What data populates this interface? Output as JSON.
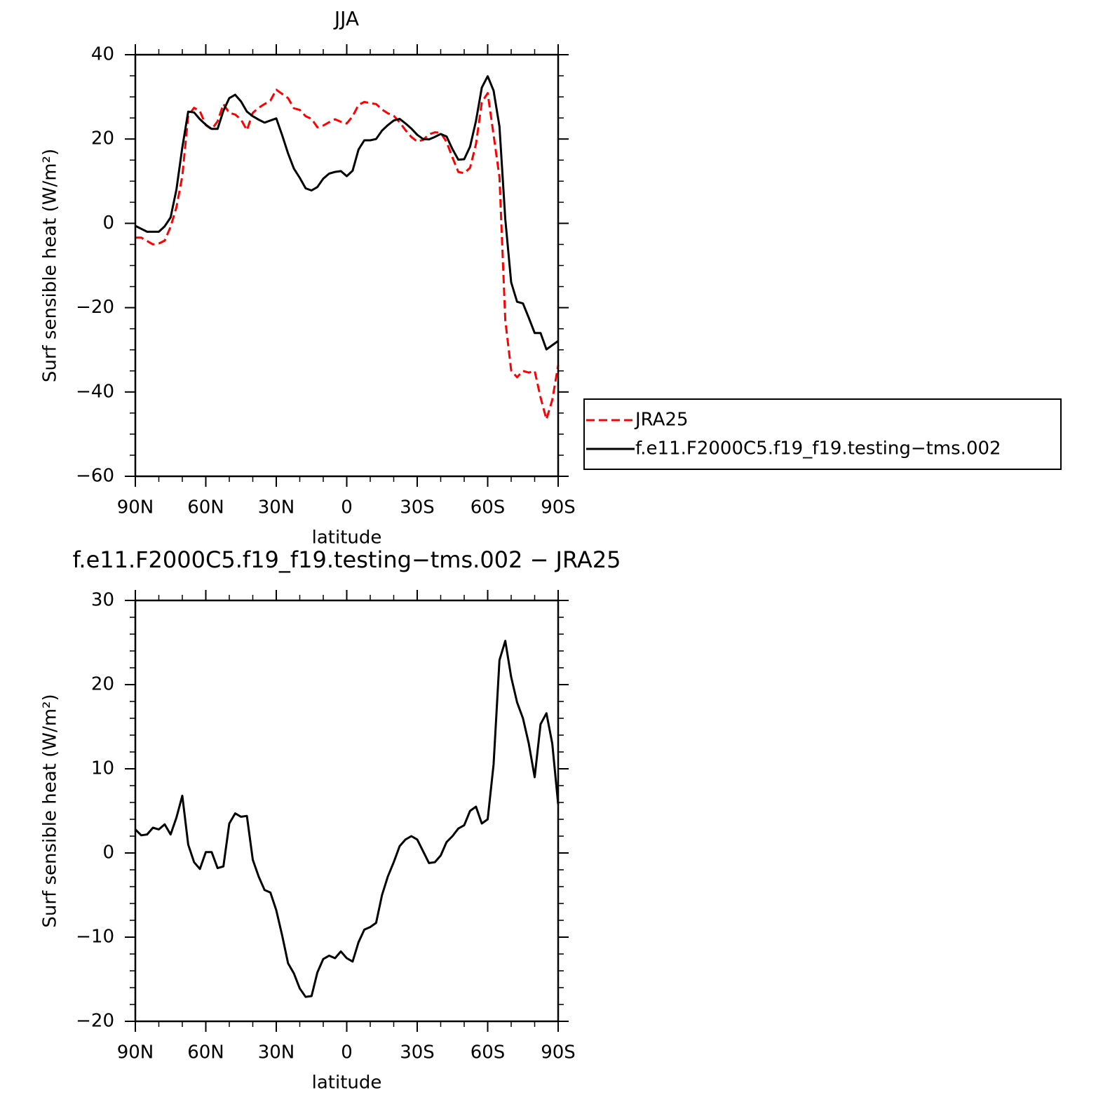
{
  "chart_data": [
    {
      "type": "line",
      "title": "JJA",
      "ylabel": "Surf sensible heat (W/m²)",
      "xlabel": "latitude",
      "x": [
        90,
        87.5,
        85,
        82.5,
        80,
        77.5,
        75,
        72.5,
        70,
        67.5,
        65,
        62.5,
        60,
        57.5,
        55,
        52.5,
        50,
        47.5,
        45,
        42.5,
        40,
        37.5,
        35,
        32.5,
        30,
        27.5,
        25,
        22.5,
        20,
        17.5,
        15,
        12.5,
        10,
        7.5,
        5,
        2.5,
        0,
        -2.5,
        -5,
        -7.5,
        -10,
        -12.5,
        -15,
        -17.5,
        -20,
        -22.5,
        -25,
        -27.5,
        -30,
        -32.5,
        -35,
        -37.5,
        -40,
        -42.5,
        -45,
        -47.5,
        -50,
        -52.5,
        -55,
        -57.5,
        -60,
        -62.5,
        -65,
        -67.5,
        -70,
        -72.5,
        -75,
        -77.5,
        -80,
        -82.5,
        -85,
        -87.5,
        -90
      ],
      "xlim": [
        90,
        -90
      ],
      "xticks": [
        {
          "value": 90,
          "label": "90N"
        },
        {
          "value": 60,
          "label": "60N"
        },
        {
          "value": 30,
          "label": "30N"
        },
        0,
        {
          "value": -30,
          "label": "30S"
        },
        {
          "value": -60,
          "label": "60S"
        },
        {
          "value": -90,
          "label": "90S"
        }
      ],
      "xminorticks": [
        80,
        70,
        50,
        40,
        20,
        10,
        -10,
        -20,
        -40,
        -50,
        -70,
        -80
      ],
      "ylim": [
        -60,
        40
      ],
      "yticks": [
        {
          "value": -60,
          "label": "−60"
        },
        {
          "value": -40,
          "label": "−40"
        },
        {
          "value": -20,
          "label": "−20"
        },
        0,
        20,
        40
      ],
      "yminorticks": [
        -55,
        -50,
        -45,
        -35,
        -30,
        -25,
        -15,
        -10,
        -5,
        5,
        10,
        15,
        25,
        30,
        35
      ],
      "legend": "right",
      "series": [
        {
          "name": "JRA25",
          "color": "#ff0000",
          "dash": true,
          "values": [
            -3.4,
            -3.4,
            -4.2,
            -5,
            -4.8,
            -4.1,
            -0.8,
            3.8,
            11.2,
            25.5,
            27.4,
            26.6,
            23.3,
            22.3,
            24.2,
            28.3,
            26.2,
            25.8,
            24.6,
            22.1,
            26.2,
            27.4,
            28.3,
            29.1,
            31.7,
            30.7,
            29.7,
            27.3,
            26.9,
            25.4,
            24.8,
            22.8,
            23.2,
            24,
            24.7,
            24.1,
            23.7,
            25.4,
            28.1,
            28.8,
            28.5,
            28.3,
            27,
            26.1,
            25.5,
            24,
            22.1,
            20.5,
            19.4,
            19.8,
            21.1,
            21.6,
            21.5,
            19.3,
            15.6,
            12.2,
            11.9,
            13.2,
            18.8,
            28.7,
            30.9,
            21,
            11,
            -23,
            -34.9,
            -36.5,
            -35,
            -35.4,
            -35,
            -41.3,
            -46.5,
            -41.9,
            -33.7
          ]
        },
        {
          "name": "f.e11.F2000C5.f19_f19.testing−tms.002",
          "color": "#000000",
          "dash": false,
          "values": [
            -0.6,
            -1.3,
            -2,
            -2,
            -2,
            -0.7,
            1.4,
            8,
            18,
            26.5,
            26.3,
            24.7,
            23.4,
            22.4,
            22.4,
            26.7,
            29.7,
            30.5,
            28.9,
            26.5,
            25.4,
            24.6,
            23.9,
            24.4,
            24.9,
            20.9,
            16.6,
            13,
            10.8,
            8.3,
            7.8,
            8.6,
            10.6,
            11.8,
            12.2,
            12.4,
            11.2,
            12.5,
            17.5,
            19.7,
            19.7,
            20,
            22,
            23.3,
            24.4,
            24.8,
            23.7,
            22.5,
            21,
            20,
            19.9,
            20.5,
            21.2,
            20.6,
            17.6,
            15.1,
            15.2,
            18.2,
            24.3,
            32.2,
            34.9,
            31.5,
            23,
            1,
            -14,
            -18.6,
            -19,
            -22.4,
            -26,
            -26,
            -29.9,
            -28.9,
            -27.9
          ]
        }
      ]
    },
    {
      "type": "line",
      "title": "f.e11.F2000C5.f19_f19.testing−tms.002 − JRA25",
      "ylabel": "Surf sensible heat (W/m²)",
      "xlabel": "latitude",
      "x": [
        90,
        87.5,
        85,
        82.5,
        80,
        77.5,
        75,
        72.5,
        70,
        67.5,
        65,
        62.5,
        60,
        57.5,
        55,
        52.5,
        50,
        47.5,
        45,
        42.5,
        40,
        37.5,
        35,
        32.5,
        30,
        27.5,
        25,
        22.5,
        20,
        17.5,
        15,
        12.5,
        10,
        7.5,
        5,
        2.5,
        0,
        -2.5,
        -5,
        -7.5,
        -10,
        -12.5,
        -15,
        -17.5,
        -20,
        -22.5,
        -25,
        -27.5,
        -30,
        -32.5,
        -35,
        -37.5,
        -40,
        -42.5,
        -45,
        -47.5,
        -50,
        -52.5,
        -55,
        -57.5,
        -60,
        -62.5,
        -65,
        -67.5,
        -70,
        -72.5,
        -75,
        -77.5,
        -80,
        -82.5,
        -85,
        -87.5,
        -90
      ],
      "xlim": [
        90,
        -90
      ],
      "xticks": [
        {
          "value": 90,
          "label": "90N"
        },
        {
          "value": 60,
          "label": "60N"
        },
        {
          "value": 30,
          "label": "30N"
        },
        0,
        {
          "value": -30,
          "label": "30S"
        },
        {
          "value": -60,
          "label": "60S"
        },
        {
          "value": -90,
          "label": "90S"
        }
      ],
      "xminorticks": [
        80,
        70,
        50,
        40,
        20,
        10,
        -10,
        -20,
        -40,
        -50,
        -70,
        -80
      ],
      "ylim": [
        -20,
        30
      ],
      "yticks": [
        {
          "value": -20,
          "label": "−20"
        },
        {
          "value": -10,
          "label": "−10"
        },
        0,
        10,
        20,
        30
      ],
      "yminorticks": [
        -18,
        -16,
        -14,
        -12,
        -8,
        -6,
        -4,
        -2,
        2,
        4,
        6,
        8,
        12,
        14,
        16,
        18,
        22,
        24,
        26,
        28
      ],
      "series": [
        {
          "color": "#000000",
          "dash": false,
          "values": [
            2.8,
            2.1,
            2.2,
            3,
            2.8,
            3.4,
            2.2,
            4.2,
            6.8,
            1,
            -1.1,
            -1.9,
            0.1,
            0.1,
            -1.8,
            -1.6,
            3.5,
            4.7,
            4.3,
            4.4,
            -0.8,
            -2.8,
            -4.4,
            -4.7,
            -6.8,
            -9.8,
            -13.1,
            -14.3,
            -16.1,
            -17.1,
            -17,
            -14.2,
            -12.6,
            -12.2,
            -12.5,
            -11.7,
            -12.5,
            -12.9,
            -10.6,
            -9.1,
            -8.8,
            -8.3,
            -5,
            -2.8,
            -1.1,
            0.8,
            1.6,
            2,
            1.6,
            0.2,
            -1.2,
            -1.1,
            -0.3,
            1.3,
            2,
            2.9,
            3.3,
            5,
            5.5,
            3.5,
            4,
            10.5,
            22.9,
            25.2,
            20.9,
            17.9,
            16,
            13,
            9,
            15.3,
            16.6,
            13,
            5.8
          ]
        }
      ]
    }
  ]
}
